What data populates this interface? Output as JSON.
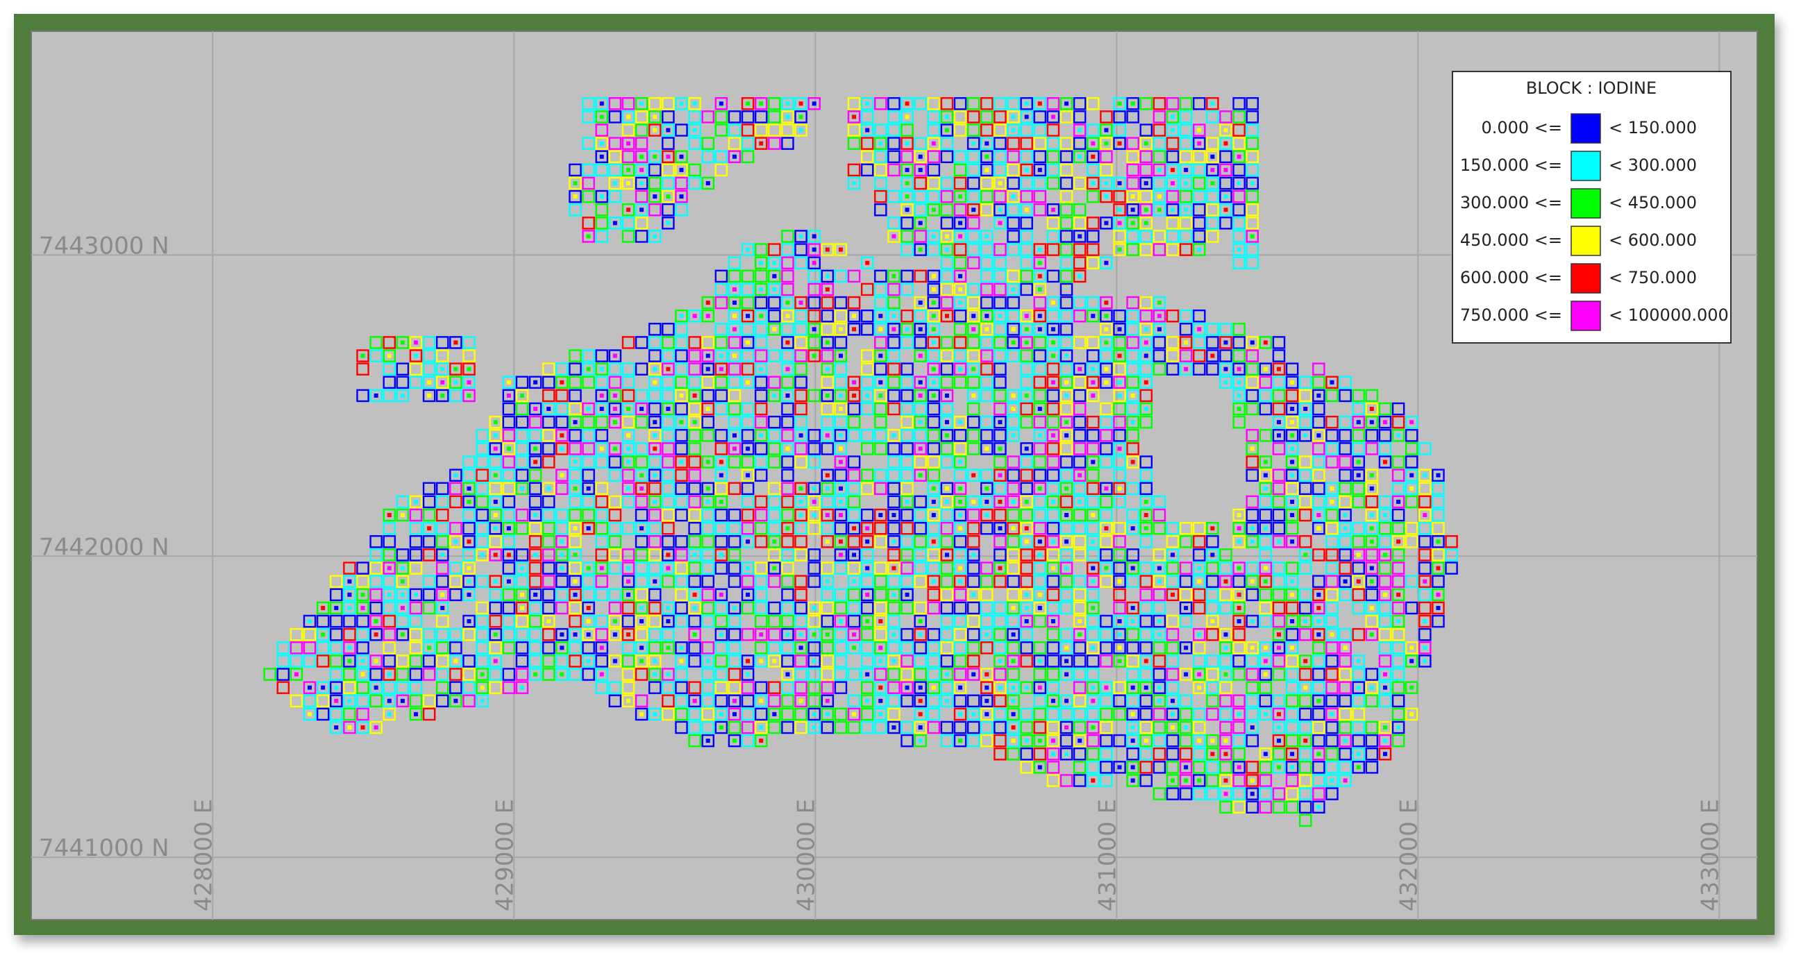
{
  "map": {
    "xlim": [
      427398,
      433126
    ],
    "ylim": [
      7440793,
      7443743
    ],
    "x_ticks": [
      {
        "value": 428000,
        "label": "428000 E"
      },
      {
        "value": 429000,
        "label": "429000 E"
      },
      {
        "value": 430000,
        "label": "430000 E"
      },
      {
        "value": 431000,
        "label": "431000 E"
      },
      {
        "value": 432000,
        "label": "432000 E"
      },
      {
        "value": 433000,
        "label": "433000 E"
      }
    ],
    "y_ticks": [
      {
        "value": 7443000,
        "label": "7443000 N"
      },
      {
        "value": 7442000,
        "label": "7442000 N"
      },
      {
        "value": 7441000,
        "label": "7441000 N"
      }
    ],
    "legend": {
      "title": "BLOCK : IODINE",
      "items": [
        {
          "lower": "0.000 <=",
          "upper": "< 150.000",
          "color": "#0000ff"
        },
        {
          "lower": "150.000 <=",
          "upper": "< 300.000",
          "color": "#00ffff"
        },
        {
          "lower": "300.000 <=",
          "upper": "< 450.000",
          "color": "#00ff00"
        },
        {
          "lower": "450.000 <=",
          "upper": "< 600.000",
          "color": "#ffff00"
        },
        {
          "lower": "600.000 <=",
          "upper": "< 750.000",
          "color": "#ff0000"
        },
        {
          "lower": "750.000 <=",
          "upper": "< 100000.000",
          "color": "#ff00ff"
        }
      ]
    }
  }
}
